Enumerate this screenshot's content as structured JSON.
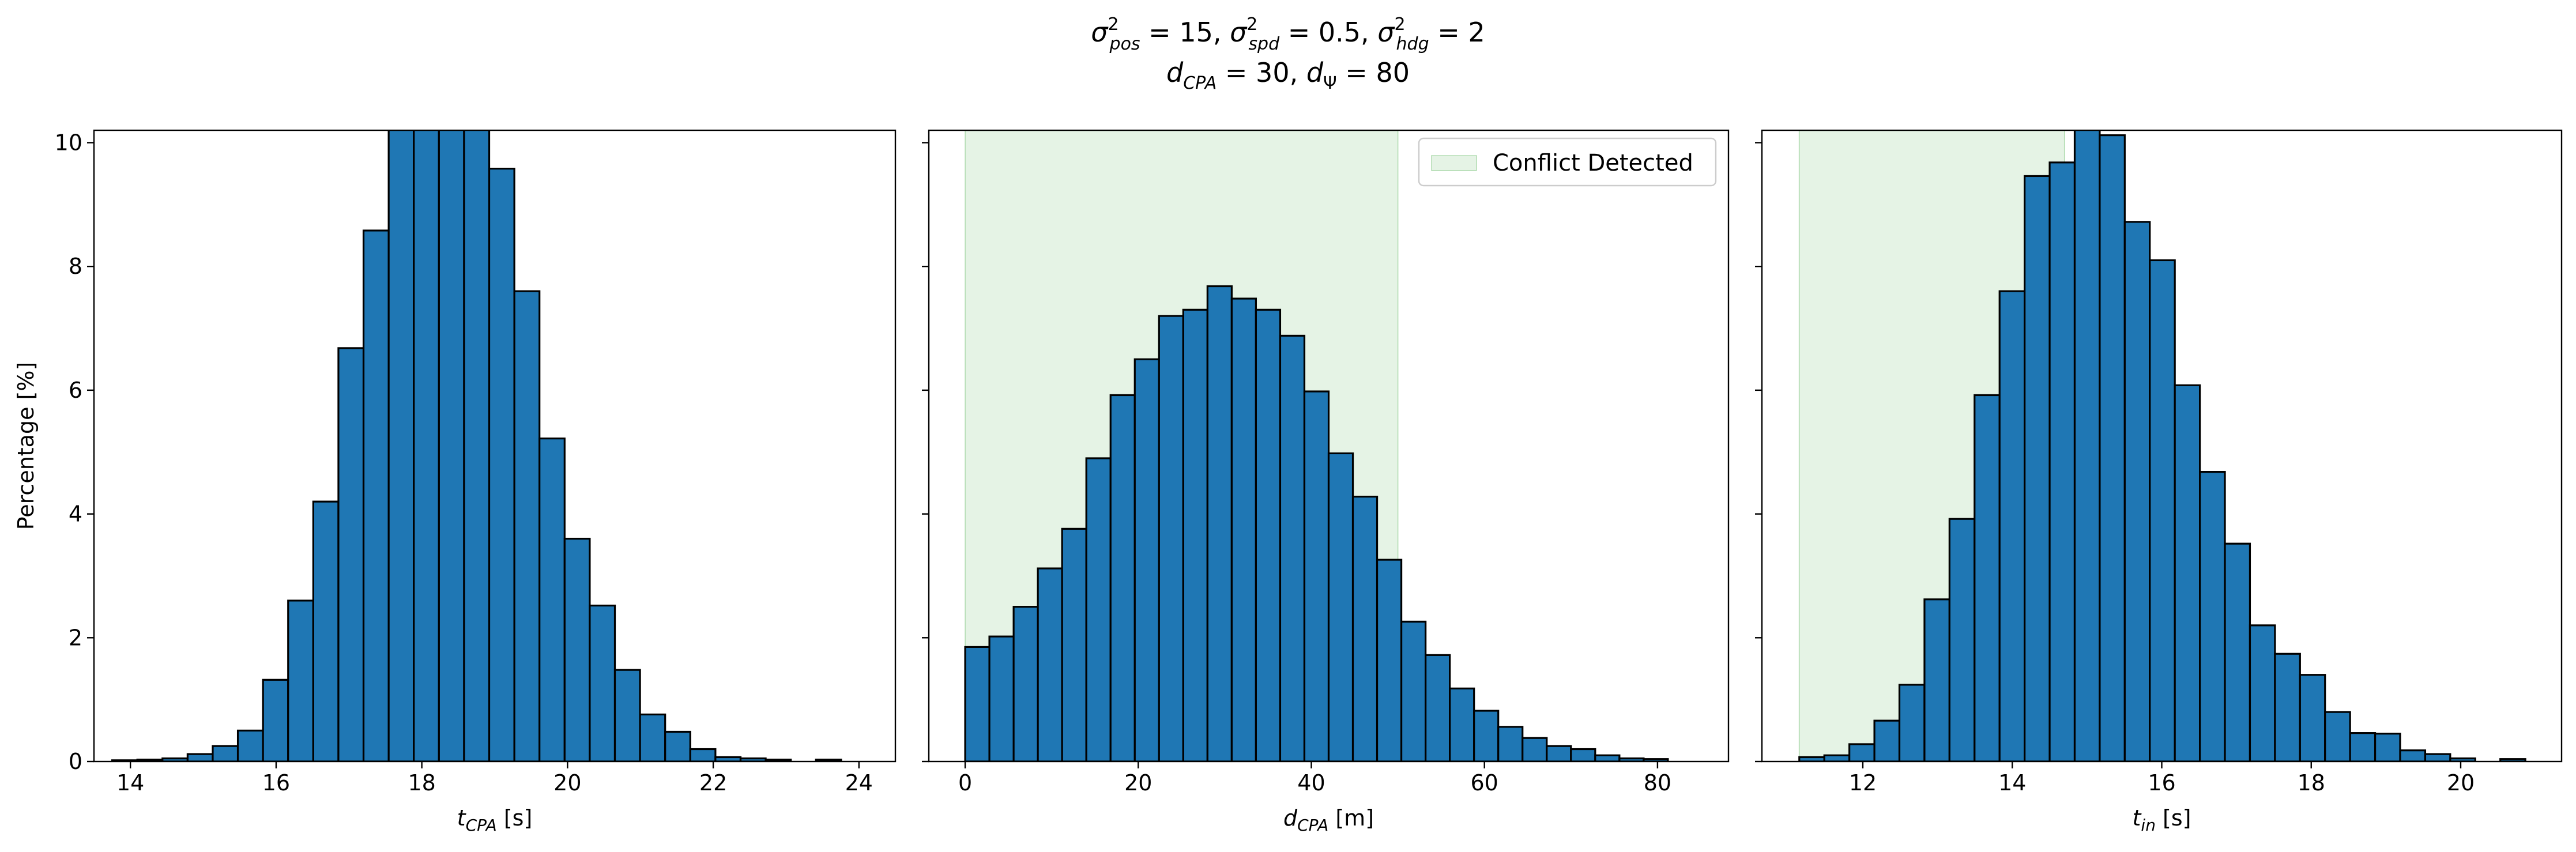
{
  "figure": {
    "title_line1": "σ²pos = 15, σ²spd = 0.5, σ²hdg = 2",
    "title_line2": "dCPA = 30, dΨ = 80",
    "colors": {
      "bar_fill": "#1f77b4",
      "bar_edge": "#000000",
      "region_fill": "#2ca02c",
      "region_alpha": 0.12
    }
  },
  "chart_data": [
    {
      "type": "bar",
      "xlabel": "tCPA [s]",
      "ylabel": "Percentage [%]",
      "xlim": [
        13.5,
        24.5
      ],
      "ylim": [
        0,
        10.2
      ],
      "xticks": [
        14,
        16,
        18,
        20,
        22,
        24
      ],
      "yticks": [
        0,
        2,
        4,
        6,
        8,
        10
      ],
      "bin_width": 0.345,
      "bin_start": 13.75,
      "values": [
        0.02,
        0.03,
        0.05,
        0.12,
        0.25,
        0.5,
        1.32,
        2.6,
        4.2,
        6.68,
        8.58,
        10.65,
        11.4,
        11.6,
        11.0,
        9.58,
        7.6,
        5.22,
        3.6,
        2.52,
        1.48,
        0.76,
        0.48,
        0.2,
        0.07,
        0.05,
        0.03,
        0.0,
        0.03
      ],
      "region": null,
      "legend": null
    },
    {
      "type": "bar",
      "xlabel": "dCPA [m]",
      "ylabel": "",
      "xlim": [
        -4.2,
        88.2
      ],
      "ylim": [
        0,
        10.2
      ],
      "xticks": [
        0,
        20,
        40,
        60,
        80
      ],
      "yticks": [
        0,
        2,
        4,
        6,
        8,
        10
      ],
      "bin_width": 2.8,
      "bin_start": 0,
      "values": [
        1.85,
        2.02,
        2.5,
        3.12,
        3.76,
        4.9,
        5.92,
        6.5,
        7.2,
        7.3,
        7.68,
        7.48,
        7.3,
        6.88,
        5.98,
        4.98,
        4.28,
        3.26,
        2.26,
        1.72,
        1.18,
        0.82,
        0.56,
        0.38,
        0.25,
        0.2,
        0.1,
        0.05,
        0.04
      ],
      "region": [
        0,
        50
      ],
      "legend": {
        "label": "Conflict Detected",
        "loc": "upper right"
      }
    },
    {
      "type": "bar",
      "xlabel": "tin [s]",
      "ylabel": "",
      "xlim": [
        10.65,
        21.35
      ],
      "ylim": [
        0,
        10.2
      ],
      "xticks": [
        12,
        14,
        16,
        18,
        20
      ],
      "yticks": [
        0,
        2,
        4,
        6,
        8,
        10
      ],
      "bin_width": 0.335,
      "bin_start": 11.15,
      "values": [
        0.07,
        0.1,
        0.28,
        0.66,
        1.24,
        2.62,
        3.92,
        5.92,
        7.6,
        9.46,
        9.68,
        10.28,
        10.12,
        8.72,
        8.1,
        6.08,
        4.68,
        3.52,
        2.2,
        1.74,
        1.4,
        0.8,
        0.46,
        0.45,
        0.18,
        0.12,
        0.05,
        0.0,
        0.04
      ],
      "region": [
        11.15,
        14.7
      ],
      "legend": null
    }
  ]
}
